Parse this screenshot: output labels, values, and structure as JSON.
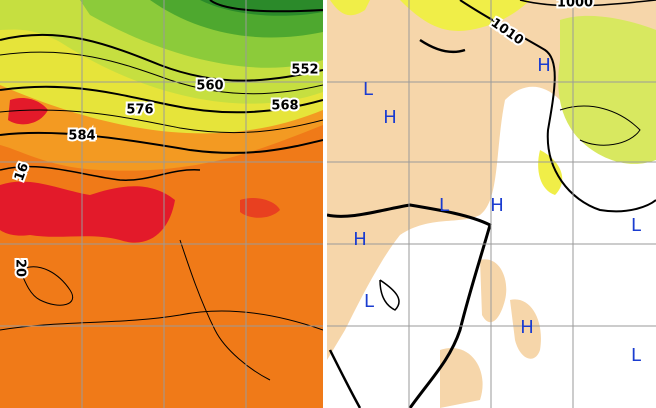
{
  "left_panel": {
    "contour_labels": [
      "560",
      "552",
      "576",
      "568",
      "584",
      "16",
      "20"
    ]
  },
  "right_panel": {
    "isobar_labels": [
      "1010",
      "1000"
    ],
    "pressure_centers": [
      "L",
      "H",
      "H",
      "L",
      "H",
      "H",
      "L",
      "L",
      "H",
      "L"
    ]
  }
}
